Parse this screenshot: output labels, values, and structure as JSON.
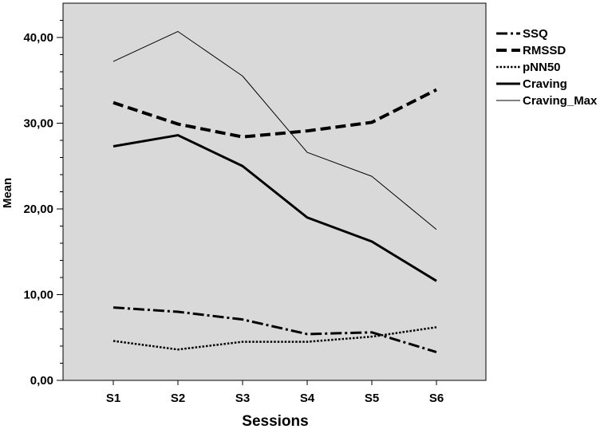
{
  "chart_data": {
    "type": "line",
    "title": "",
    "xlabel": "Sessions",
    "ylabel": "Mean",
    "categories": [
      "S1",
      "S2",
      "S3",
      "S4",
      "S5",
      "S6"
    ],
    "ylim": [
      0,
      44
    ],
    "yticks": [
      0,
      10,
      20,
      30,
      40
    ],
    "ytick_labels": [
      "0,00",
      "10,00",
      "20,00",
      "30,00",
      "40,00"
    ],
    "grid": false,
    "plot_background": "#d9d9d9",
    "legend_position": "right",
    "series": [
      {
        "name": "SSQ",
        "style": "dashdot",
        "values": [
          8.5,
          8.0,
          7.1,
          5.4,
          5.6,
          3.3
        ]
      },
      {
        "name": "RMSSD",
        "style": "dashed",
        "values": [
          32.4,
          29.9,
          28.4,
          29.1,
          30.1,
          33.9
        ]
      },
      {
        "name": "pNN50",
        "style": "dotted",
        "values": [
          4.6,
          3.6,
          4.5,
          4.5,
          5.1,
          6.2
        ]
      },
      {
        "name": "Craving",
        "style": "solid-thick",
        "values": [
          27.3,
          28.6,
          25.0,
          19.0,
          16.2,
          11.6
        ]
      },
      {
        "name": "Craving_Max",
        "style": "solid-thin",
        "values": [
          37.2,
          40.7,
          35.5,
          26.6,
          23.8,
          17.6
        ]
      }
    ]
  }
}
